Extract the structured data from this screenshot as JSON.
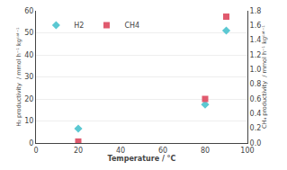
{
  "chart_data": {
    "type": "scatter",
    "x": [
      20,
      80,
      90
    ],
    "series": [
      {
        "name": "H2",
        "color": "#5bc8d2",
        "marker": "diamond",
        "values": [
          6.5,
          17.5,
          51
        ]
      },
      {
        "name": "CH4",
        "color": "#e05a6e",
        "marker": "square",
        "axis": "y2",
        "values": [
          0.02,
          0.6,
          1.72
        ]
      }
    ],
    "xlabel": "Temperature / °C",
    "ylabel": "H₂ productivity  / mmol h⁻¹ kgᶜᵃᵗ⁻¹",
    "y2label": "CH₄ productivity  / mmol h⁻¹ kgᶜᵃᵗ⁻¹",
    "xlim": [
      0,
      100
    ],
    "xticks": [
      0,
      20,
      40,
      60,
      80,
      100
    ],
    "ylim": [
      0,
      60
    ],
    "yticks": [
      0,
      10,
      20,
      30,
      40,
      50,
      60
    ],
    "y2lim": [
      0,
      1.8
    ],
    "y2ticks": [
      {
        "value": 0,
        "label": "0.0"
      },
      0.2,
      0.4,
      0.6,
      0.8,
      {
        "value": 1.0,
        "label": "1.0"
      },
      1.2,
      1.4,
      1.6,
      1.8
    ],
    "grid": true,
    "legend": "upper left"
  }
}
